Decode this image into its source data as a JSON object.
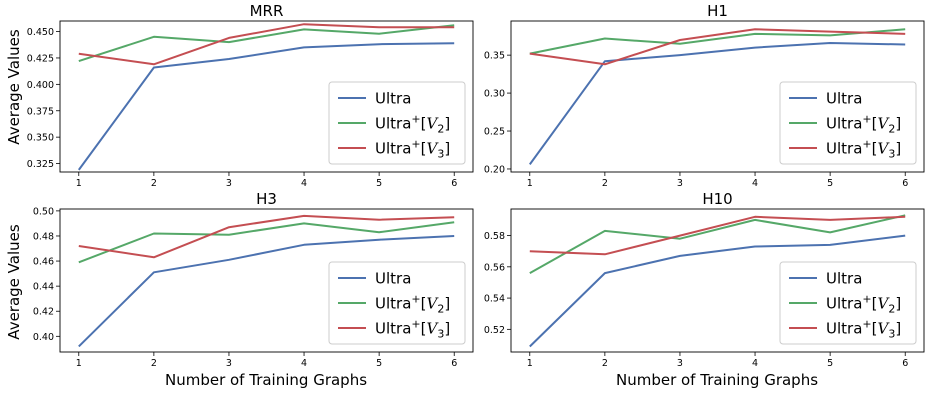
{
  "figure": {
    "ylabel": "Average Values",
    "xlabel": "Number of Training Graphs"
  },
  "colors": {
    "Ultra": "#4c72b0",
    "Ultra+[V2]": "#55a868",
    "Ultra+[V3]": "#c44e52"
  },
  "chart_data": [
    {
      "type": "line",
      "title": "MRR",
      "x": [
        1,
        2,
        3,
        4,
        5,
        6
      ],
      "yticks": [
        "0.325",
        "0.350",
        "0.375",
        "0.400",
        "0.425",
        "0.450"
      ],
      "ylim": [
        0.317,
        0.46
      ],
      "legend_position": "lower-right",
      "series": [
        {
          "name": "Ultra",
          "values": [
            0.319,
            0.416,
            0.424,
            0.435,
            0.438,
            0.439
          ]
        },
        {
          "name": "Ultra+[V2]",
          "values": [
            0.422,
            0.445,
            0.44,
            0.452,
            0.448,
            0.456
          ]
        },
        {
          "name": "Ultra+[V3]",
          "values": [
            0.429,
            0.419,
            0.444,
            0.457,
            0.454,
            0.454
          ]
        }
      ]
    },
    {
      "type": "line",
      "title": "H1",
      "x": [
        1,
        2,
        3,
        4,
        5,
        6
      ],
      "yticks": [
        "0.20",
        "0.25",
        "0.30",
        "0.35"
      ],
      "ylim": [
        0.196,
        0.395
      ],
      "legend_position": "lower-right",
      "series": [
        {
          "name": "Ultra",
          "values": [
            0.206,
            0.342,
            0.35,
            0.36,
            0.366,
            0.364
          ]
        },
        {
          "name": "Ultra+[V2]",
          "values": [
            0.352,
            0.372,
            0.365,
            0.378,
            0.376,
            0.384
          ]
        },
        {
          "name": "Ultra+[V3]",
          "values": [
            0.352,
            0.338,
            0.37,
            0.384,
            0.381,
            0.378
          ]
        }
      ]
    },
    {
      "type": "line",
      "title": "H3",
      "x": [
        1,
        2,
        3,
        4,
        5,
        6
      ],
      "yticks": [
        "0.40",
        "0.42",
        "0.44",
        "0.46",
        "0.48",
        "0.50"
      ],
      "ylim": [
        0.3875,
        0.5015
      ],
      "legend_position": "lower-right",
      "series": [
        {
          "name": "Ultra",
          "values": [
            0.392,
            0.451,
            0.461,
            0.473,
            0.477,
            0.48
          ]
        },
        {
          "name": "Ultra+[V2]",
          "values": [
            0.459,
            0.482,
            0.481,
            0.49,
            0.483,
            0.491
          ]
        },
        {
          "name": "Ultra+[V3]",
          "values": [
            0.472,
            0.463,
            0.487,
            0.496,
            0.493,
            0.495
          ]
        }
      ]
    },
    {
      "type": "line",
      "title": "H10",
      "x": [
        1,
        2,
        3,
        4,
        5,
        6
      ],
      "yticks": [
        "0.52",
        "0.54",
        "0.56",
        "0.58"
      ],
      "ylim": [
        0.5055,
        0.597
      ],
      "legend_position": "lower-right",
      "series": [
        {
          "name": "Ultra",
          "values": [
            0.509,
            0.556,
            0.567,
            0.573,
            0.574,
            0.58
          ]
        },
        {
          "name": "Ultra+[V2]",
          "values": [
            0.556,
            0.583,
            0.578,
            0.59,
            0.582,
            0.593
          ]
        },
        {
          "name": "Ultra+[V3]",
          "values": [
            0.57,
            0.568,
            0.58,
            0.592,
            0.59,
            0.592
          ]
        }
      ]
    }
  ]
}
